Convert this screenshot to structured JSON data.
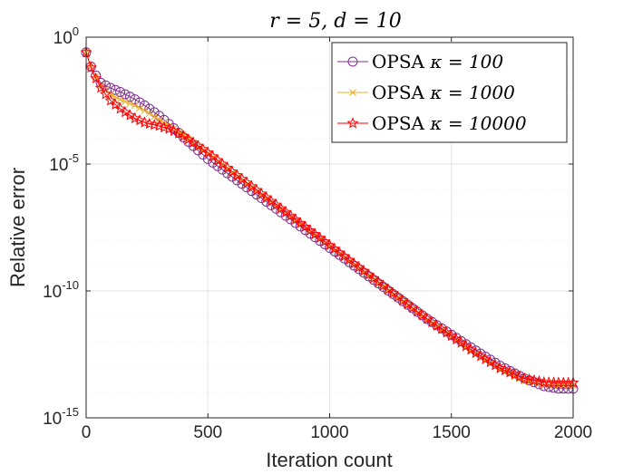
{
  "chart_data": {
    "type": "line",
    "title": "r = 5, d = 10",
    "xlabel": "Iteration count",
    "ylabel": "Relative error",
    "xlim": [
      0,
      2000
    ],
    "ylim_log10": [
      -15,
      0
    ],
    "y_scale": "log",
    "grid": true,
    "legend_location": "top-right",
    "x_ticks": [
      0,
      500,
      1000,
      1500,
      2000
    ],
    "x_tick_labels": [
      "0",
      "500",
      "1000",
      "1500",
      "2000"
    ],
    "y_ticks_log10": [
      0,
      -5,
      -10,
      -15
    ],
    "y_tick_base": "10",
    "y_tick_exponents": [
      "0",
      "-5",
      "-10",
      "-15"
    ],
    "series": [
      {
        "name": "OPSA κ = 100",
        "legend_prefix": "OPSA",
        "legend_math": "κ = 100",
        "color": "#7E2F8E",
        "marker": "circle",
        "points_log10": [
          [
            0,
            -0.6
          ],
          [
            25,
            -1.3
          ],
          [
            60,
            -1.8
          ],
          [
            100,
            -2.0
          ],
          [
            150,
            -2.2
          ],
          [
            200,
            -2.45
          ],
          [
            250,
            -2.75
          ],
          [
            300,
            -3.1
          ],
          [
            350,
            -3.5
          ],
          [
            400,
            -3.95
          ],
          [
            500,
            -4.8
          ],
          [
            600,
            -5.5
          ],
          [
            800,
            -6.9
          ],
          [
            1000,
            -8.3
          ],
          [
            1200,
            -9.7
          ],
          [
            1400,
            -11.1
          ],
          [
            1600,
            -12.35
          ],
          [
            1700,
            -12.95
          ],
          [
            1800,
            -13.45
          ],
          [
            1880,
            -13.75
          ],
          [
            1940,
            -13.85
          ],
          [
            2000,
            -13.85
          ]
        ]
      },
      {
        "name": "OPSA κ = 1000",
        "legend_prefix": "OPSA",
        "legend_math": "κ = 1000",
        "color": "#EDB120",
        "marker": "x",
        "points_log10": [
          [
            0,
            -0.6
          ],
          [
            25,
            -1.3
          ],
          [
            60,
            -1.9
          ],
          [
            100,
            -2.25
          ],
          [
            150,
            -2.5
          ],
          [
            200,
            -2.7
          ],
          [
            250,
            -2.95
          ],
          [
            300,
            -3.25
          ],
          [
            350,
            -3.55
          ],
          [
            400,
            -3.85
          ],
          [
            500,
            -4.6
          ],
          [
            600,
            -5.35
          ],
          [
            800,
            -6.8
          ],
          [
            1000,
            -8.25
          ],
          [
            1200,
            -9.7
          ],
          [
            1400,
            -11.15
          ],
          [
            1600,
            -12.5
          ],
          [
            1700,
            -13.1
          ],
          [
            1800,
            -13.55
          ],
          [
            1880,
            -13.7
          ],
          [
            1940,
            -13.72
          ],
          [
            2000,
            -13.72
          ]
        ]
      },
      {
        "name": "OPSA κ = 10000",
        "legend_prefix": "OPSA",
        "legend_math": "κ = 10000",
        "color": "#FF0000",
        "marker": "star",
        "points_log10": [
          [
            0,
            -0.6
          ],
          [
            25,
            -1.35
          ],
          [
            60,
            -2.0
          ],
          [
            100,
            -2.5
          ],
          [
            150,
            -2.9
          ],
          [
            200,
            -3.2
          ],
          [
            250,
            -3.4
          ],
          [
            300,
            -3.5
          ],
          [
            350,
            -3.65
          ],
          [
            400,
            -3.9
          ],
          [
            500,
            -4.55
          ],
          [
            600,
            -5.3
          ],
          [
            800,
            -6.75
          ],
          [
            1000,
            -8.2
          ],
          [
            1200,
            -9.65
          ],
          [
            1400,
            -11.1
          ],
          [
            1600,
            -12.45
          ],
          [
            1700,
            -13.05
          ],
          [
            1800,
            -13.45
          ],
          [
            1880,
            -13.6
          ],
          [
            1940,
            -13.62
          ],
          [
            2000,
            -13.62
          ]
        ]
      }
    ]
  }
}
